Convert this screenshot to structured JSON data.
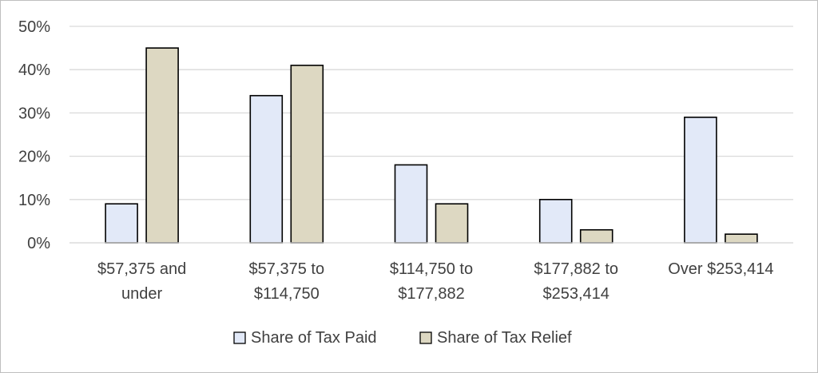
{
  "chart_data": {
    "type": "bar",
    "categories": [
      [
        "$57,375 and",
        "under"
      ],
      [
        "$57,375 to",
        "$114,750"
      ],
      [
        "$114,750 to",
        "$177,882"
      ],
      [
        "$177,882 to",
        "$253,414"
      ],
      [
        "Over $253,414"
      ]
    ],
    "series": [
      {
        "name": "Share of Tax Paid",
        "values": [
          9,
          34,
          18,
          10,
          29
        ],
        "color": "#e2e9f8"
      },
      {
        "name": "Share of Tax Relief",
        "values": [
          45,
          41,
          9,
          3,
          2
        ],
        "color": "#ddd8c2"
      }
    ],
    "ylim": [
      0,
      50
    ],
    "yticks": [
      "0%",
      "10%",
      "20%",
      "30%",
      "40%",
      "50%"
    ],
    "grid": true,
    "legend": "bottom",
    "bar_outline": "#000000",
    "grid_color": "#d9d9d9"
  }
}
